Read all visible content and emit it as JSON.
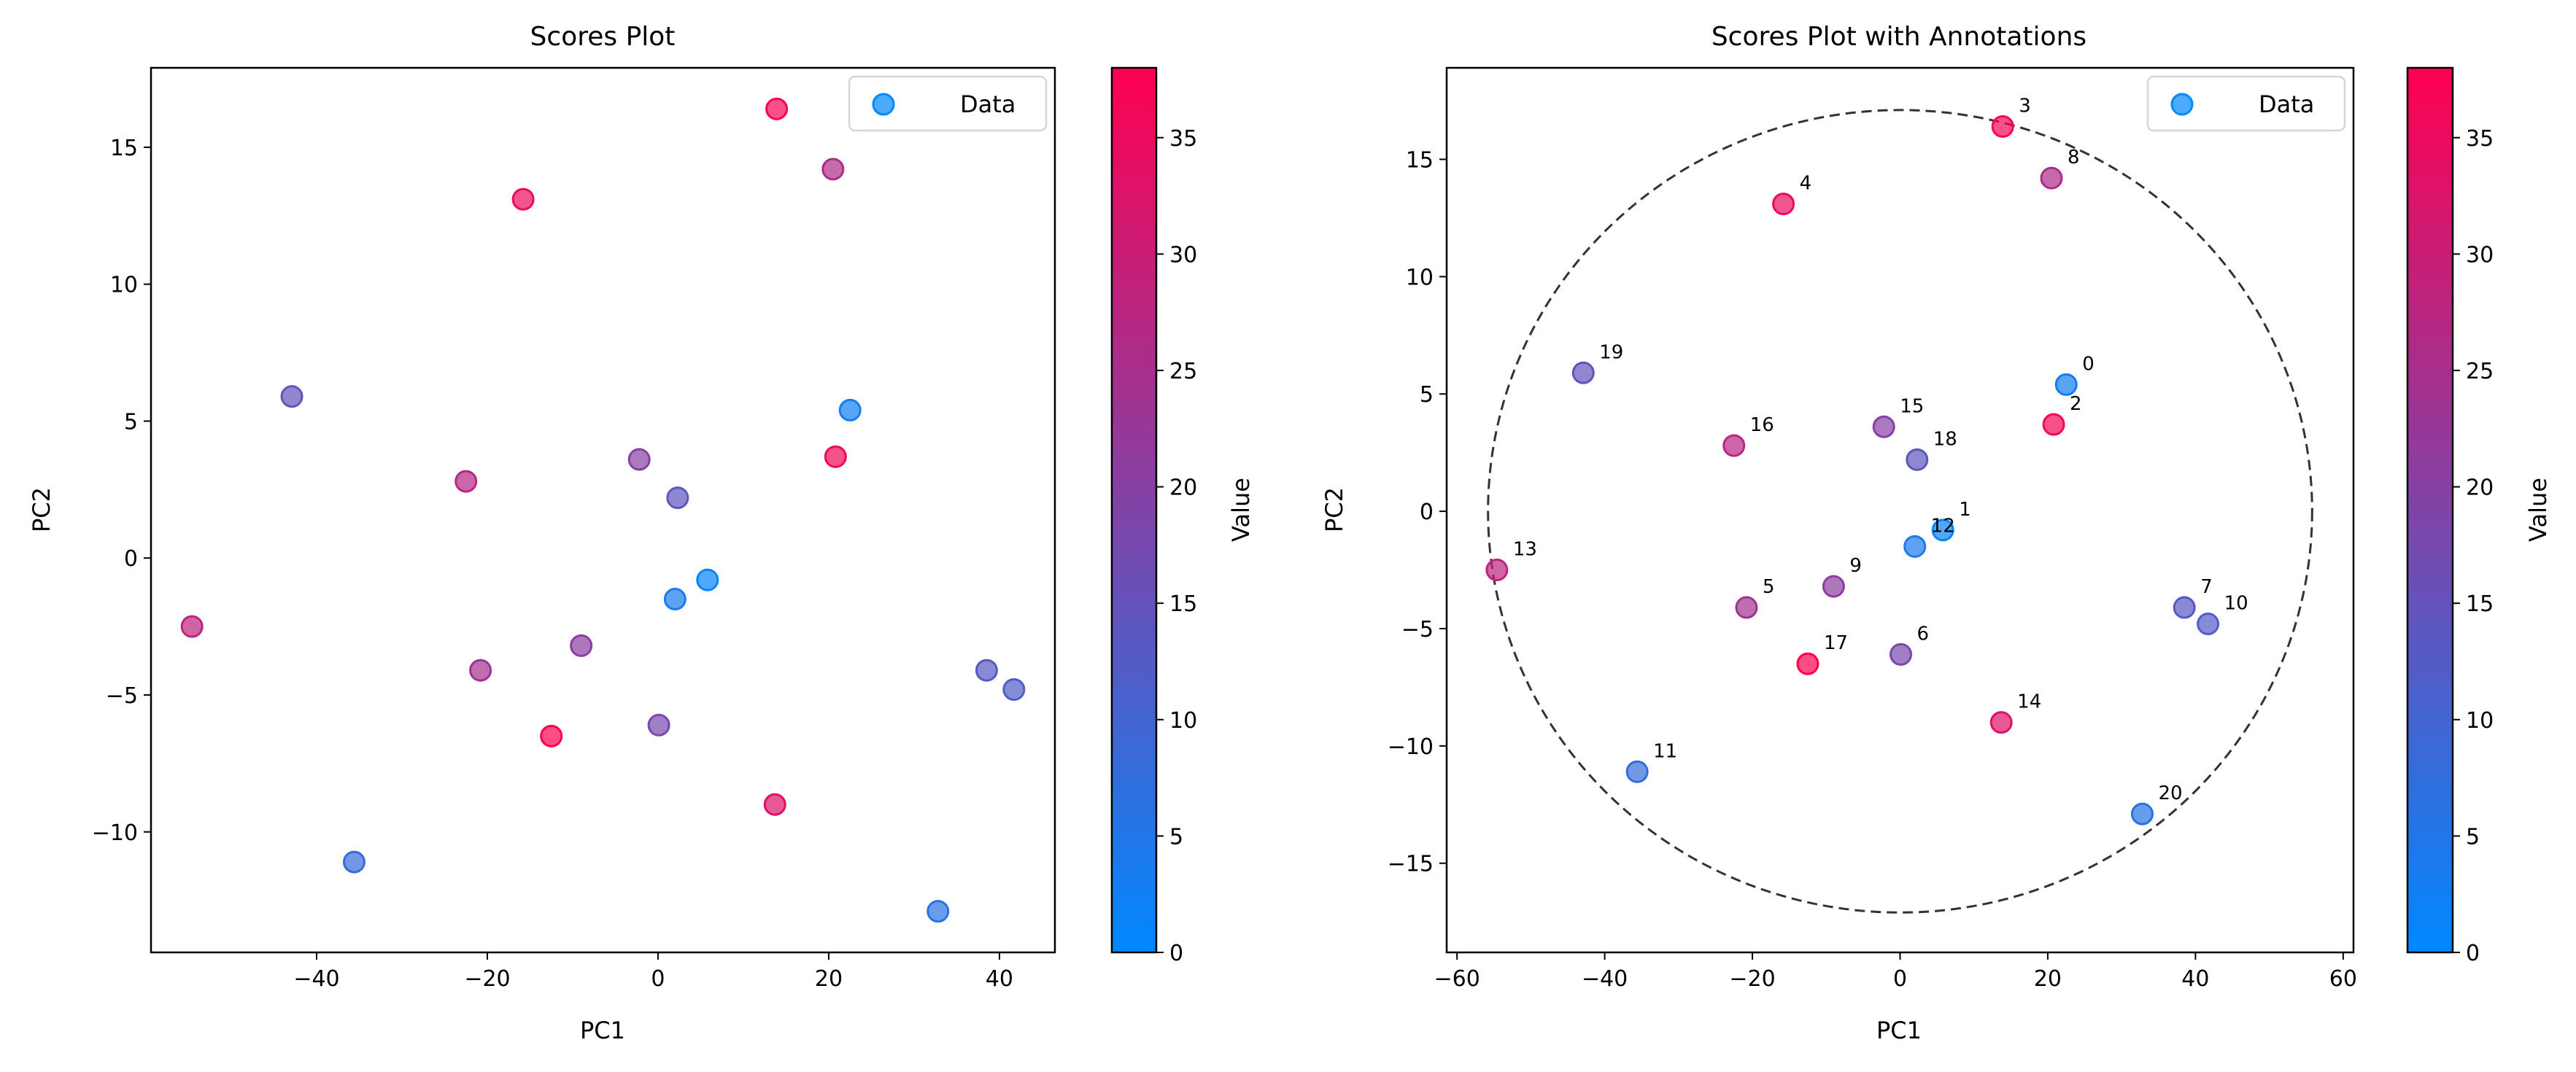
{
  "chart_data": [
    {
      "type": "scatter",
      "title": "Scores Plot",
      "xlabel": "PC1",
      "ylabel": "PC2",
      "xlim": [
        -59.4,
        46.5
      ],
      "ylim": [
        -14.4,
        17.9
      ],
      "xticks": [
        -40,
        -20,
        0,
        20,
        40
      ],
      "yticks": [
        -10,
        -5,
        0,
        5,
        10,
        15
      ],
      "grid": false,
      "legend": {
        "position": "top-right",
        "entries": [
          "Data"
        ]
      },
      "colorbar": {
        "label": "Value",
        "range": [
          0,
          38
        ],
        "ticks": [
          0,
          5,
          10,
          15,
          20,
          25,
          30,
          35
        ],
        "colors": [
          "#0088ff",
          "#ff0050"
        ]
      },
      "annotated": false
    },
    {
      "type": "scatter",
      "title": "Scores Plot with Annotations",
      "xlabel": "PC1",
      "ylabel": "PC2",
      "xlim": [
        -61.4,
        61.4
      ],
      "ylim": [
        -18.8,
        18.9
      ],
      "xticks": [
        -60,
        -40,
        -20,
        0,
        20,
        40,
        60
      ],
      "yticks": [
        -15,
        -10,
        -5,
        0,
        5,
        10,
        15
      ],
      "grid": false,
      "legend": {
        "position": "top-right",
        "entries": [
          "Data"
        ]
      },
      "colorbar": {
        "label": "Value",
        "range": [
          0,
          38
        ],
        "ticks": [
          0,
          5,
          10,
          15,
          20,
          25,
          30,
          35
        ],
        "colors": [
          "#0088ff",
          "#ff0050"
        ]
      },
      "annotated": true,
      "confidence_ellipse": {
        "center": [
          0,
          0
        ],
        "radius_pc1": 55.8,
        "radius_pc2": 17.1,
        "style": "dashed"
      }
    }
  ],
  "points": [
    {
      "label": "0",
      "pc1": 22.5,
      "pc2": 5.4,
      "value": 3
    },
    {
      "label": "1",
      "pc1": 5.8,
      "pc2": -0.8,
      "value": 1
    },
    {
      "label": "2",
      "pc1": 20.8,
      "pc2": 3.7,
      "value": 36
    },
    {
      "label": "3",
      "pc1": 13.9,
      "pc2": 16.4,
      "value": 37
    },
    {
      "label": "4",
      "pc1": -15.8,
      "pc2": 13.1,
      "value": 35
    },
    {
      "label": "5",
      "pc1": -20.8,
      "pc2": -4.1,
      "value": 24
    },
    {
      "label": "6",
      "pc1": 0.1,
      "pc2": -6.1,
      "value": 18
    },
    {
      "label": "7",
      "pc1": 38.5,
      "pc2": -4.1,
      "value": 13
    },
    {
      "label": "8",
      "pc1": 20.5,
      "pc2": 14.2,
      "value": 26
    },
    {
      "label": "9",
      "pc1": -9.0,
      "pc2": -3.2,
      "value": 21
    },
    {
      "label": "10",
      "pc1": 41.7,
      "pc2": -4.8,
      "value": 12
    },
    {
      "label": "11",
      "pc1": -35.6,
      "pc2": -11.1,
      "value": 8
    },
    {
      "label": "12",
      "pc1": 2.0,
      "pc2": -1.5,
      "value": 4
    },
    {
      "label": "13",
      "pc1": -54.6,
      "pc2": -2.5,
      "value": 28
    },
    {
      "label": "14",
      "pc1": 13.7,
      "pc2": -9.0,
      "value": 33
    },
    {
      "label": "15",
      "pc1": -2.2,
      "pc2": 3.6,
      "value": 20
    },
    {
      "label": "16",
      "pc1": -22.5,
      "pc2": 2.8,
      "value": 27
    },
    {
      "label": "17",
      "pc1": -12.5,
      "pc2": -6.5,
      "value": 38
    },
    {
      "label": "18",
      "pc1": 2.3,
      "pc2": 2.2,
      "value": 14
    },
    {
      "label": "19",
      "pc1": -42.9,
      "pc2": 5.9,
      "value": 15
    },
    {
      "label": "20",
      "pc1": 32.8,
      "pc2": -12.9,
      "value": 6
    }
  ]
}
